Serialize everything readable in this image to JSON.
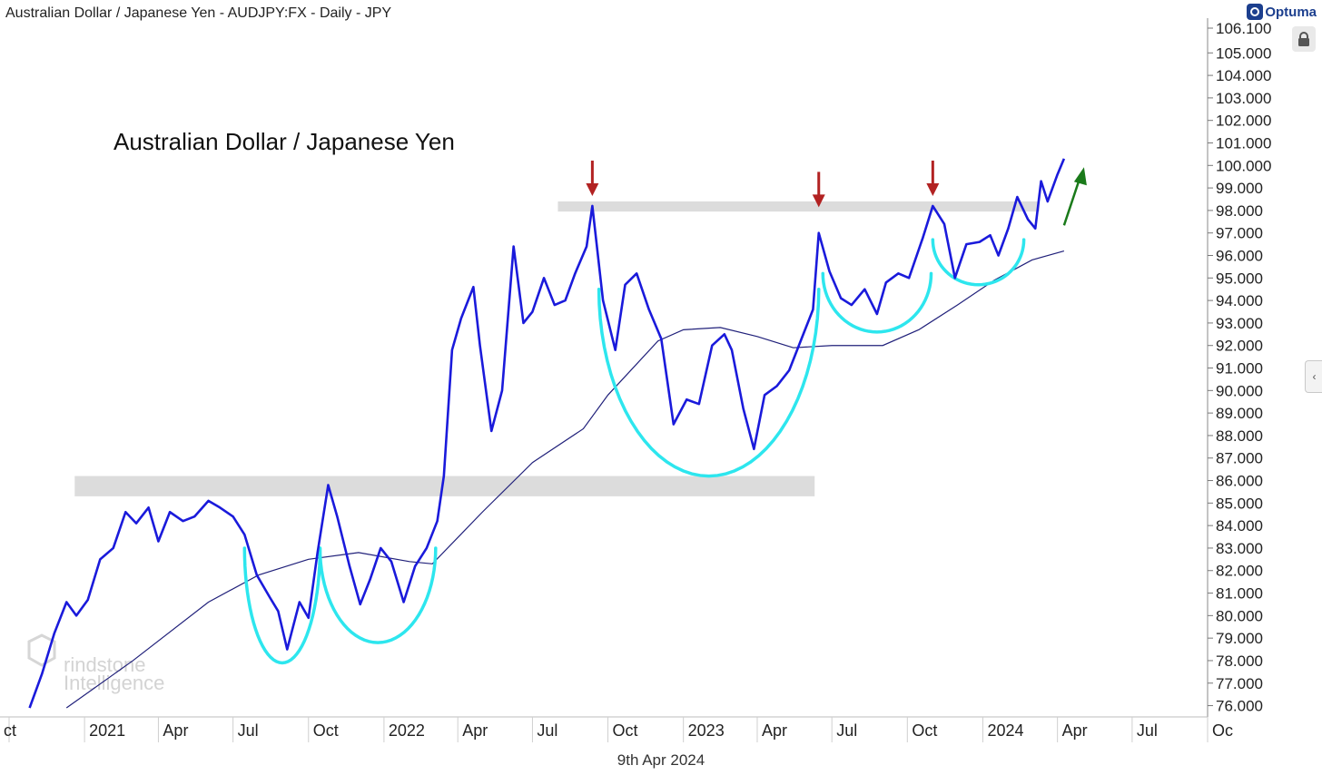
{
  "header": {
    "title": "Australian Dollar / Japanese Yen - AUDJPY:FX - Daily - JPY",
    "brand": "Optuma"
  },
  "footer": {
    "date": "9th Apr 2024"
  },
  "watermark": {
    "line1": "rindstone",
    "line2": "Intelligence"
  },
  "chart_data": {
    "type": "line",
    "title": "Australian Dollar / Japanese Yen",
    "xlabel": "",
    "ylabel": "",
    "ylim": [
      75.7,
      106.1
    ],
    "x_ticks": [
      "ct",
      "2021",
      "Apr",
      "Jul",
      "Oct",
      "2022",
      "Apr",
      "Jul",
      "Oct",
      "2023",
      "Apr",
      "Jul",
      "Oct",
      "2024",
      "Apr",
      "Jul",
      "Oc"
    ],
    "y_ticks": [
      "76.000",
      "77.000",
      "78.000",
      "79.000",
      "80.000",
      "81.000",
      "82.000",
      "83.000",
      "84.000",
      "85.000",
      "86.000",
      "87.000",
      "88.000",
      "89.000",
      "90.000",
      "91.000",
      "92.000",
      "93.000",
      "94.000",
      "95.000",
      "96.000",
      "97.000",
      "98.000",
      "99.000",
      "100.000",
      "101.000",
      "102.000",
      "103.000",
      "104.000",
      "105.000",
      "106.100"
    ],
    "series": [
      {
        "name": "AUDJPY",
        "color": "#1a1adb",
        "points": [
          [
            "2020-10-26",
            75.9
          ],
          [
            "2020-11-10",
            77.4
          ],
          [
            "2020-11-25",
            79.2
          ],
          [
            "2020-12-10",
            80.6
          ],
          [
            "2020-12-22",
            80.0
          ],
          [
            "2021-01-05",
            80.7
          ],
          [
            "2021-01-20",
            82.5
          ],
          [
            "2021-02-05",
            83.0
          ],
          [
            "2021-02-20",
            84.6
          ],
          [
            "2021-03-05",
            84.1
          ],
          [
            "2021-03-20",
            84.8
          ],
          [
            "2021-04-01",
            83.3
          ],
          [
            "2021-04-15",
            84.6
          ],
          [
            "2021-05-01",
            84.2
          ],
          [
            "2021-05-15",
            84.4
          ],
          [
            "2021-06-01",
            85.1
          ],
          [
            "2021-06-15",
            84.8
          ],
          [
            "2021-07-01",
            84.4
          ],
          [
            "2021-07-15",
            83.6
          ],
          [
            "2021-07-30",
            81.8
          ],
          [
            "2021-08-15",
            80.8
          ],
          [
            "2021-08-25",
            80.2
          ],
          [
            "2021-09-05",
            78.5
          ],
          [
            "2021-09-20",
            80.6
          ],
          [
            "2021-10-01",
            79.9
          ],
          [
            "2021-10-12",
            82.8
          ],
          [
            "2021-10-25",
            85.8
          ],
          [
            "2021-11-05",
            84.4
          ],
          [
            "2021-11-20",
            82.2
          ],
          [
            "2021-12-03",
            80.5
          ],
          [
            "2021-12-15",
            81.6
          ],
          [
            "2021-12-28",
            83.0
          ],
          [
            "2022-01-10",
            82.4
          ],
          [
            "2022-01-25",
            80.6
          ],
          [
            "2022-02-08",
            82.2
          ],
          [
            "2022-02-22",
            83.0
          ],
          [
            "2022-03-07",
            84.2
          ],
          [
            "2022-03-15",
            86.2
          ],
          [
            "2022-03-25",
            91.8
          ],
          [
            "2022-04-05",
            93.2
          ],
          [
            "2022-04-20",
            94.6
          ],
          [
            "2022-04-28",
            92.0
          ],
          [
            "2022-05-12",
            88.2
          ],
          [
            "2022-05-25",
            90.0
          ],
          [
            "2022-06-08",
            96.4
          ],
          [
            "2022-06-20",
            93.0
          ],
          [
            "2022-07-01",
            93.5
          ],
          [
            "2022-07-15",
            95.0
          ],
          [
            "2022-07-28",
            93.8
          ],
          [
            "2022-08-10",
            94.0
          ],
          [
            "2022-08-22",
            95.2
          ],
          [
            "2022-09-05",
            96.4
          ],
          [
            "2022-09-12",
            98.2
          ],
          [
            "2022-09-25",
            94.0
          ],
          [
            "2022-10-10",
            91.8
          ],
          [
            "2022-10-22",
            94.7
          ],
          [
            "2022-11-05",
            95.2
          ],
          [
            "2022-11-20",
            93.6
          ],
          [
            "2022-12-05",
            92.3
          ],
          [
            "2022-12-20",
            88.5
          ],
          [
            "2023-01-05",
            89.6
          ],
          [
            "2023-01-20",
            89.4
          ],
          [
            "2023-02-05",
            92.0
          ],
          [
            "2023-02-20",
            92.5
          ],
          [
            "2023-03-01",
            91.8
          ],
          [
            "2023-03-15",
            89.2
          ],
          [
            "2023-03-28",
            87.4
          ],
          [
            "2023-04-10",
            89.8
          ],
          [
            "2023-04-25",
            90.2
          ],
          [
            "2023-05-10",
            90.9
          ],
          [
            "2023-05-25",
            92.3
          ],
          [
            "2023-06-08",
            93.6
          ],
          [
            "2023-06-15",
            97.0
          ],
          [
            "2023-06-28",
            95.3
          ],
          [
            "2023-07-12",
            94.1
          ],
          [
            "2023-07-25",
            93.8
          ],
          [
            "2023-08-10",
            94.5
          ],
          [
            "2023-08-25",
            93.4
          ],
          [
            "2023-09-05",
            94.8
          ],
          [
            "2023-09-20",
            95.2
          ],
          [
            "2023-10-03",
            95.0
          ],
          [
            "2023-10-20",
            96.8
          ],
          [
            "2023-11-01",
            98.2
          ],
          [
            "2023-11-15",
            97.4
          ],
          [
            "2023-11-28",
            95.0
          ],
          [
            "2023-12-12",
            96.5
          ],
          [
            "2023-12-28",
            96.6
          ],
          [
            "2024-01-10",
            96.9
          ],
          [
            "2024-01-20",
            96.0
          ],
          [
            "2024-02-01",
            97.2
          ],
          [
            "2024-02-12",
            98.6
          ],
          [
            "2024-02-25",
            97.6
          ],
          [
            "2024-03-05",
            97.2
          ],
          [
            "2024-03-12",
            99.3
          ],
          [
            "2024-03-20",
            98.4
          ],
          [
            "2024-04-01",
            99.6
          ],
          [
            "2024-04-09",
            100.3
          ]
        ]
      },
      {
        "name": "Moving Average",
        "color": "#20207a",
        "points": [
          [
            "2020-12-10",
            75.9
          ],
          [
            "2021-03-01",
            78.0
          ],
          [
            "2021-06-01",
            80.6
          ],
          [
            "2021-08-01",
            81.8
          ],
          [
            "2021-10-01",
            82.5
          ],
          [
            "2021-12-01",
            82.8
          ],
          [
            "2022-02-01",
            82.4
          ],
          [
            "2022-03-01",
            82.3
          ],
          [
            "2022-05-01",
            84.6
          ],
          [
            "2022-07-01",
            86.8
          ],
          [
            "2022-09-01",
            88.3
          ],
          [
            "2022-10-01",
            89.8
          ],
          [
            "2022-12-01",
            92.2
          ],
          [
            "2023-01-01",
            92.7
          ],
          [
            "2023-02-15",
            92.8
          ],
          [
            "2023-04-01",
            92.4
          ],
          [
            "2023-05-15",
            91.9
          ],
          [
            "2023-07-01",
            92.0
          ],
          [
            "2023-09-01",
            92.0
          ],
          [
            "2023-10-15",
            92.7
          ],
          [
            "2023-12-01",
            93.8
          ],
          [
            "2024-01-15",
            94.9
          ],
          [
            "2024-03-01",
            95.8
          ],
          [
            "2024-04-09",
            96.2
          ]
        ]
      }
    ],
    "resistance_zones": [
      {
        "name": "upper-resistance",
        "start": "2022-08-01",
        "end": "2024-03-10",
        "low": 97.95,
        "high": 98.4
      },
      {
        "name": "lower-resistance",
        "start": "2020-12-20",
        "end": "2023-06-10",
        "low": 85.3,
        "high": 86.2
      }
    ],
    "cup_patterns": [
      {
        "start": "2021-07-15",
        "end": "2021-10-15",
        "top": 83.0,
        "bottom": 77.9
      },
      {
        "start": "2021-10-15",
        "end": "2022-03-05",
        "top": 83.0,
        "bottom": 78.8
      },
      {
        "start": "2022-09-20",
        "end": "2023-06-15",
        "top": 94.5,
        "bottom": 86.2
      },
      {
        "start": "2023-06-20",
        "end": "2023-10-30",
        "top": 95.2,
        "bottom": 92.6
      },
      {
        "start": "2023-11-01",
        "end": "2024-02-20",
        "top": 96.7,
        "bottom": 94.7
      }
    ],
    "annotations": [
      {
        "type": "down-arrow",
        "date": "2022-09-12",
        "value": 98.4,
        "color": "#b22222"
      },
      {
        "type": "down-arrow",
        "date": "2023-06-15",
        "value": 97.9,
        "color": "#b22222"
      },
      {
        "type": "down-arrow",
        "date": "2023-11-01",
        "value": 98.4,
        "color": "#b22222"
      },
      {
        "type": "up-arrow",
        "date": "2024-04-09",
        "value": 97.5,
        "color": "#1a7a1a"
      }
    ],
    "grid": false,
    "legend": "none"
  }
}
